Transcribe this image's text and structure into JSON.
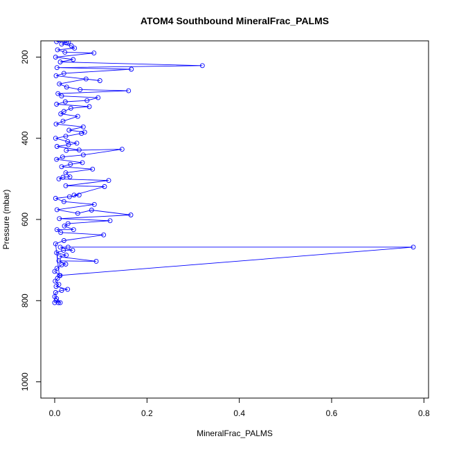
{
  "chart_data": {
    "type": "line",
    "title": "ATOM4 Southbound MineralFrac_PALMS",
    "xlabel": "MineralFrac_PALMS",
    "ylabel": "Pressure (mbar)",
    "xlim": [
      -0.03,
      0.81
    ],
    "ylim": [
      1040,
      160
    ],
    "y_reversed": true,
    "grid": false,
    "legend": "none",
    "x_ticks": [
      0.0,
      0.2,
      0.4,
      0.6,
      0.8
    ],
    "x_tick_labels": [
      "0.0",
      "0.2",
      "0.4",
      "0.6",
      "0.8"
    ],
    "y_ticks": [
      200,
      400,
      600,
      800,
      1000
    ],
    "y_tick_labels": [
      "200",
      "400",
      "600",
      "800",
      "1000"
    ],
    "series": [
      {
        "color": "#0000ff",
        "marker": "open-circle",
        "points": [
          [
            0.0,
            805
          ],
          [
            0.003,
            800
          ],
          [
            0.008,
            805
          ],
          [
            0.012,
            805
          ],
          [
            0.004,
            795
          ],
          [
            0.0,
            790
          ],
          [
            0.002,
            780
          ],
          [
            0.015,
            775
          ],
          [
            0.028,
            772
          ],
          [
            0.003,
            765
          ],
          [
            0.009,
            760
          ],
          [
            0.001,
            752
          ],
          [
            0.006,
            745
          ],
          [
            0.012,
            738
          ],
          [
            0.0,
            728
          ],
          [
            0.005,
            720
          ],
          [
            0.015,
            712
          ],
          [
            0.024,
            710
          ],
          [
            0.009,
            702
          ],
          [
            0.09,
            703
          ],
          [
            0.01,
            692
          ],
          [
            0.025,
            688
          ],
          [
            0.004,
            682
          ],
          [
            0.019,
            676
          ],
          [
            0.039,
            676
          ],
          [
            0.012,
            668
          ],
          [
            0.029,
            668
          ],
          [
            0.777,
            668
          ],
          [
            0.01,
            738
          ],
          [
            0.002,
            660
          ],
          [
            0.02,
            652
          ],
          [
            0.106,
            638
          ],
          [
            0.013,
            632
          ],
          [
            0.005,
            625
          ],
          [
            0.041,
            625
          ],
          [
            0.021,
            616
          ],
          [
            0.029,
            610
          ],
          [
            0.12,
            603
          ],
          [
            0.01,
            598
          ],
          [
            0.165,
            589
          ],
          [
            0.08,
            577
          ],
          [
            0.05,
            585
          ],
          [
            0.005,
            576
          ],
          [
            0.086,
            563
          ],
          [
            0.02,
            556
          ],
          [
            0.002,
            548
          ],
          [
            0.032,
            544
          ],
          [
            0.053,
            540
          ],
          [
            0.042,
            540
          ],
          [
            0.108,
            519
          ],
          [
            0.024,
            517
          ],
          [
            0.117,
            504
          ],
          [
            0.009,
            500
          ],
          [
            0.018,
            496
          ],
          [
            0.033,
            495
          ],
          [
            0.024,
            485
          ],
          [
            0.082,
            476
          ],
          [
            0.015,
            470
          ],
          [
            0.034,
            464
          ],
          [
            0.06,
            460
          ],
          [
            0.004,
            452
          ],
          [
            0.017,
            446
          ],
          [
            0.062,
            441
          ],
          [
            0.146,
            427
          ],
          [
            0.025,
            430
          ],
          [
            0.053,
            429
          ],
          [
            0.005,
            420
          ],
          [
            0.03,
            416
          ],
          [
            0.048,
            412
          ],
          [
            0.028,
            408
          ],
          [
            0.002,
            400
          ],
          [
            0.024,
            395
          ],
          [
            0.058,
            388
          ],
          [
            0.065,
            385
          ],
          [
            0.031,
            380
          ],
          [
            0.062,
            372
          ],
          [
            0.003,
            365
          ],
          [
            0.018,
            358
          ],
          [
            0.05,
            346
          ],
          [
            0.013,
            340
          ],
          [
            0.02,
            334
          ],
          [
            0.035,
            326
          ],
          [
            0.075,
            322
          ],
          [
            0.004,
            316
          ],
          [
            0.023,
            310
          ],
          [
            0.07,
            307
          ],
          [
            0.094,
            300
          ],
          [
            0.015,
            296
          ],
          [
            0.007,
            290
          ],
          [
            0.16,
            283
          ],
          [
            0.055,
            280
          ],
          [
            0.026,
            274
          ],
          [
            0.01,
            266
          ],
          [
            0.068,
            254
          ],
          [
            0.098,
            258
          ],
          [
            0.003,
            246
          ],
          [
            0.02,
            240
          ],
          [
            0.166,
            230
          ],
          [
            0.005,
            226
          ],
          [
            0.32,
            221
          ],
          [
            0.012,
            212
          ],
          [
            0.04,
            206
          ],
          [
            0.002,
            200
          ],
          [
            0.085,
            190
          ],
          [
            0.022,
            188
          ],
          [
            0.006,
            182
          ],
          [
            0.043,
            178
          ],
          [
            0.036,
            172
          ],
          [
            0.015,
            168
          ],
          [
            0.026,
            164
          ],
          [
            0.004,
            162
          ],
          [
            0.03,
            163
          ]
        ]
      }
    ]
  }
}
